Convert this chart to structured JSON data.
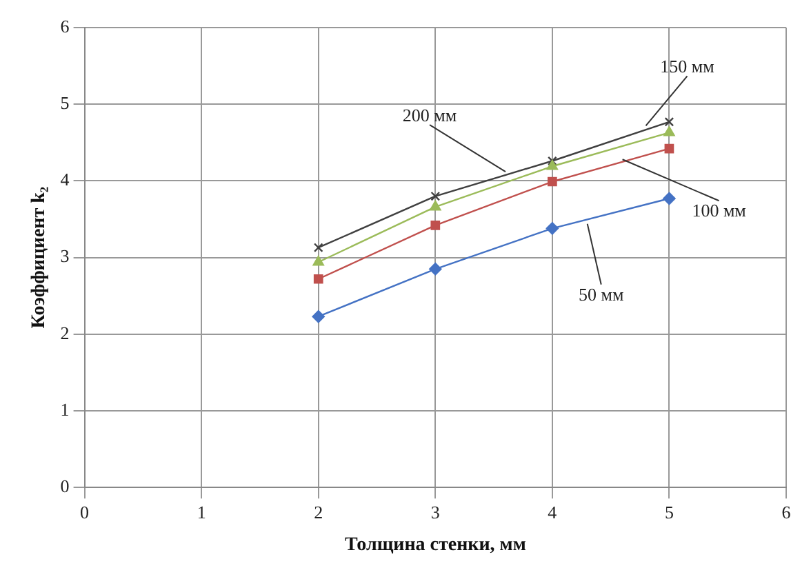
{
  "chart_data": {
    "type": "line",
    "xlabel": "Толщина стенки, мм",
    "ylabel": "Коэффициент k₂",
    "x": [
      2,
      3,
      4,
      5
    ],
    "series": [
      {
        "color": "#4472c4",
        "marker": "diamond",
        "values": [
          2.23,
          2.85,
          3.38,
          3.77
        ]
      },
      {
        "color": "#c0504d",
        "marker": "square",
        "values": [
          2.72,
          3.42,
          3.99,
          4.42
        ]
      },
      {
        "color": "#9bbb59",
        "marker": "triangle",
        "values": [
          2.94,
          3.66,
          4.19,
          4.63
        ]
      },
      {
        "color": "#404040",
        "marker": "cross",
        "values": [
          3.13,
          3.8,
          4.26,
          4.77
        ]
      }
    ],
    "annotations": [
      {
        "text": "50 мм",
        "x": 4.3,
        "y": 3.44
      },
      {
        "text": "100 мм",
        "x": 4.6,
        "y": 4.28
      },
      {
        "text": "150 мм",
        "x": 4.8,
        "y": 4.72
      },
      {
        "text": "200 мм",
        "x": 3.6,
        "y": 4.12
      }
    ],
    "xlim": [
      0,
      6
    ],
    "xticks": [
      0,
      1,
      2,
      3,
      4,
      5,
      6
    ],
    "ylim": [
      0,
      6
    ],
    "yticks": [
      0,
      1,
      2,
      3,
      4,
      5,
      6
    ],
    "grid": true,
    "legend": false
  }
}
